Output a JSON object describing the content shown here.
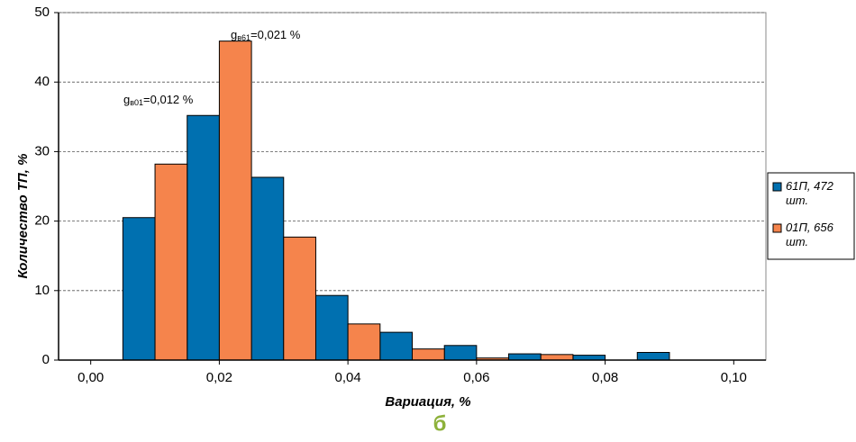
{
  "chart_data": {
    "type": "bar",
    "xlabel": "Вариация, %",
    "ylabel": "Количество ТП, %",
    "caption": "б",
    "x": [
      0.01,
      0.02,
      0.03,
      0.04,
      0.05,
      0.06,
      0.07,
      0.08,
      0.09,
      0.1
    ],
    "bar_width": 0.005,
    "series": [
      {
        "name": "61П, 472 шт.",
        "color": "#0070b0",
        "values": [
          20.5,
          35.2,
          26.3,
          9.3,
          4.0,
          2.1,
          0.9,
          0.7,
          1.1,
          0
        ]
      },
      {
        "name": "01П, 656 шт.",
        "color": "#f5844c",
        "values": [
          28.2,
          45.9,
          17.7,
          5.2,
          1.6,
          0.3,
          0.8,
          0,
          0,
          0
        ]
      }
    ],
    "xlim": [
      -0.005,
      0.105
    ],
    "ylim": [
      0,
      50
    ],
    "xticks": [
      {
        "value": 0,
        "label": "0,00"
      },
      {
        "value": 0.02,
        "label": "0,02"
      },
      {
        "value": 0.04,
        "label": "0,04"
      },
      {
        "value": 0.06,
        "label": "0,06"
      },
      {
        "value": 0.08,
        "label": "0,08"
      },
      {
        "value": 0.1,
        "label": "0,10"
      }
    ],
    "yticks": [
      0,
      10,
      20,
      30,
      40,
      50
    ],
    "grid": true,
    "legend": "right",
    "annotations": [
      {
        "base": "g",
        "sub": "в01",
        "text": "=0,012 %"
      },
      {
        "base": "g",
        "sub": "в61",
        "text": "=0,021 %"
      }
    ]
  }
}
